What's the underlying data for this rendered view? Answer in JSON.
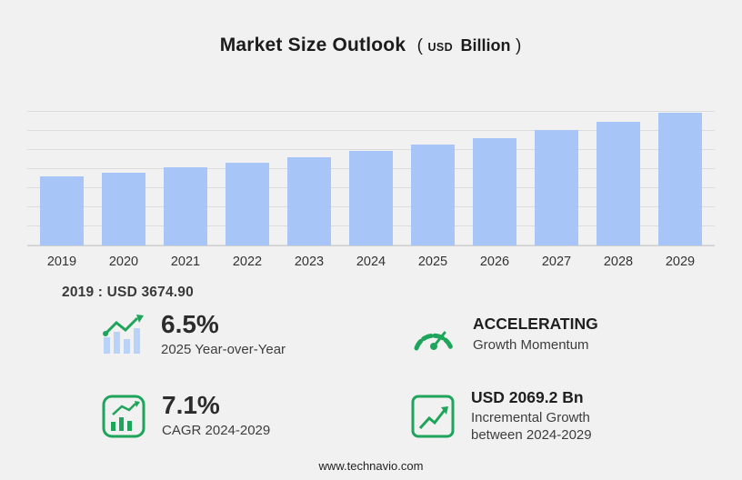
{
  "title": {
    "main": "Market Size Outlook",
    "paren_open": "(",
    "usd": "USD",
    "billion": "Billion",
    "paren_close": ")"
  },
  "chart_data": {
    "type": "bar",
    "categories": [
      "2019",
      "2020",
      "2021",
      "2022",
      "2023",
      "2024",
      "2025",
      "2026",
      "2027",
      "2028",
      "2029"
    ],
    "values": [
      3674.9,
      3916,
      4173,
      4448,
      4740,
      5051.4,
      5379.7,
      5762,
      6171,
      6609,
      7120.6
    ],
    "title": "Market Size Outlook (USD Billion)",
    "xlabel": "",
    "ylabel": "",
    "ylim": [
      0,
      7200
    ],
    "grid": true,
    "legend": false,
    "bar_color": "#a8c5f7",
    "grid_color": "#dddcdc"
  },
  "base_note": "2019 : USD  3674.90",
  "stats": [
    {
      "icon": "yoy-bars-arrow-icon",
      "value": "6.5%",
      "label": "2025 Year-over-Year"
    },
    {
      "icon": "speedometer-icon",
      "value": "ACCELERATING",
      "label": "Growth Momentum"
    },
    {
      "icon": "cagr-chart-icon",
      "value": "7.1%",
      "label": "CAGR 2024-2029"
    },
    {
      "icon": "incremental-growth-icon",
      "value": "USD 2069.2 Bn",
      "label": "Incremental Growth between 2024-2029"
    }
  ],
  "footer": {
    "url": "www.technavio.com"
  },
  "colors": {
    "accent_green": "#1fa45c",
    "bar_blue": "#a8c5f7",
    "background": "#f2f1f1"
  }
}
